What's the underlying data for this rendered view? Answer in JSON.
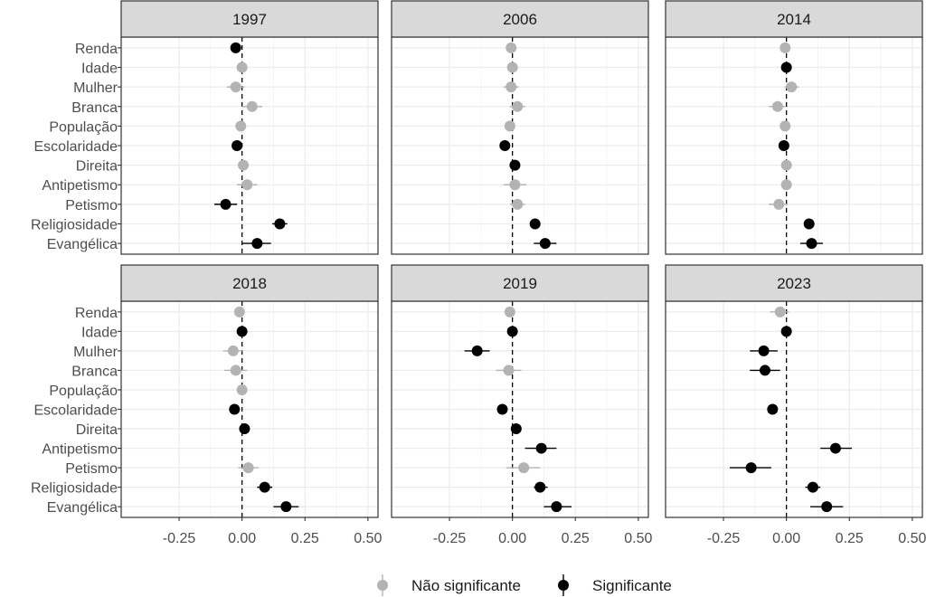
{
  "chart_data": {
    "type": "scatter",
    "subtype": "coefficient-plot-faceted",
    "title": "",
    "xlabel": "",
    "ylabel": "",
    "xlim": [
      -0.48,
      0.54
    ],
    "xticks": [
      -0.25,
      0.0,
      0.25,
      0.5
    ],
    "xtick_labels": [
      "-0.25",
      "0.00",
      "0.25",
      "0.50"
    ],
    "reference_line_x": 0,
    "grid": true,
    "legend_position": "bottom",
    "variables": [
      "Renda",
      "Idade",
      "Mulher",
      "Branca",
      "População",
      "Escolaridade",
      "Direita",
      "Antipetismo",
      "Petismo",
      "Religiosidade",
      "Evangélica"
    ],
    "legend": [
      {
        "key": "ns",
        "label": "Não significante",
        "color": "#b3b3b3"
      },
      {
        "key": "s",
        "label": "Significante",
        "color": "#000000"
      }
    ],
    "panels": [
      {
        "title": "1997",
        "points": [
          {
            "var": "Renda",
            "est": -0.025,
            "lo": -0.035,
            "hi": -0.015,
            "sig": true
          },
          {
            "var": "Idade",
            "est": 0.0,
            "lo": -0.01,
            "hi": 0.01,
            "sig": false
          },
          {
            "var": "Mulher",
            "est": -0.025,
            "lo": -0.06,
            "hi": 0.01,
            "sig": false
          },
          {
            "var": "Branca",
            "est": 0.04,
            "lo": 0.0,
            "hi": 0.08,
            "sig": false
          },
          {
            "var": "População",
            "est": -0.005,
            "lo": -0.015,
            "hi": 0.005,
            "sig": false
          },
          {
            "var": "Escolaridade",
            "est": -0.02,
            "lo": -0.03,
            "hi": -0.01,
            "sig": true
          },
          {
            "var": "Direita",
            "est": 0.005,
            "lo": -0.005,
            "hi": 0.015,
            "sig": false
          },
          {
            "var": "Antipetismo",
            "est": 0.02,
            "lo": -0.02,
            "hi": 0.06,
            "sig": false
          },
          {
            "var": "Petismo",
            "est": -0.065,
            "lo": -0.11,
            "hi": -0.02,
            "sig": true
          },
          {
            "var": "Religiosidade",
            "est": 0.15,
            "lo": 0.12,
            "hi": 0.18,
            "sig": true
          },
          {
            "var": "Evangélica",
            "est": 0.06,
            "lo": 0.0,
            "hi": 0.115,
            "sig": true
          }
        ]
      },
      {
        "title": "2006",
        "points": [
          {
            "var": "Renda",
            "est": -0.005,
            "lo": -0.015,
            "hi": 0.005,
            "sig": false
          },
          {
            "var": "Idade",
            "est": 0.0,
            "lo": -0.01,
            "hi": 0.01,
            "sig": false
          },
          {
            "var": "Mulher",
            "est": -0.005,
            "lo": -0.035,
            "hi": 0.025,
            "sig": false
          },
          {
            "var": "Branca",
            "est": 0.02,
            "lo": -0.01,
            "hi": 0.05,
            "sig": false
          },
          {
            "var": "População",
            "est": -0.01,
            "lo": -0.02,
            "hi": 0.0,
            "sig": false
          },
          {
            "var": "Escolaridade",
            "est": -0.03,
            "lo": -0.04,
            "hi": -0.02,
            "sig": true
          },
          {
            "var": "Direita",
            "est": 0.01,
            "lo": 0.0,
            "hi": 0.02,
            "sig": true
          },
          {
            "var": "Antipetismo",
            "est": 0.01,
            "lo": -0.035,
            "hi": 0.055,
            "sig": false
          },
          {
            "var": "Petismo",
            "est": 0.02,
            "lo": -0.01,
            "hi": 0.05,
            "sig": false
          },
          {
            "var": "Religiosidade",
            "est": 0.09,
            "lo": 0.07,
            "hi": 0.11,
            "sig": true
          },
          {
            "var": "Evangélica",
            "est": 0.13,
            "lo": 0.085,
            "hi": 0.175,
            "sig": true
          }
        ]
      },
      {
        "title": "2014",
        "points": [
          {
            "var": "Renda",
            "est": -0.005,
            "lo": -0.015,
            "hi": 0.005,
            "sig": false
          },
          {
            "var": "Idade",
            "est": 0.0,
            "lo": -0.01,
            "hi": 0.01,
            "sig": true
          },
          {
            "var": "Mulher",
            "est": 0.02,
            "lo": -0.005,
            "hi": 0.05,
            "sig": false
          },
          {
            "var": "Branca",
            "est": -0.035,
            "lo": -0.07,
            "hi": -0.005,
            "sig": false
          },
          {
            "var": "População",
            "est": -0.005,
            "lo": -0.015,
            "hi": 0.005,
            "sig": false
          },
          {
            "var": "Escolaridade",
            "est": -0.01,
            "lo": -0.02,
            "hi": 0.0,
            "sig": true
          },
          {
            "var": "Direita",
            "est": 0.0,
            "lo": -0.01,
            "hi": 0.01,
            "sig": false
          },
          {
            "var": "Antipetismo",
            "est": 0.0,
            "lo": -0.01,
            "hi": 0.01,
            "sig": false
          },
          {
            "var": "Petismo",
            "est": -0.03,
            "lo": -0.07,
            "hi": 0.005,
            "sig": false
          },
          {
            "var": "Religiosidade",
            "est": 0.09,
            "lo": 0.07,
            "hi": 0.11,
            "sig": true
          },
          {
            "var": "Evangélica",
            "est": 0.1,
            "lo": 0.055,
            "hi": 0.145,
            "sig": true
          }
        ]
      },
      {
        "title": "2018",
        "points": [
          {
            "var": "Renda",
            "est": -0.01,
            "lo": -0.02,
            "hi": 0.0,
            "sig": false
          },
          {
            "var": "Idade",
            "est": 0.0,
            "lo": -0.01,
            "hi": 0.01,
            "sig": true
          },
          {
            "var": "Mulher",
            "est": -0.035,
            "lo": -0.075,
            "hi": 0.005,
            "sig": false
          },
          {
            "var": "Branca",
            "est": -0.025,
            "lo": -0.07,
            "hi": 0.02,
            "sig": false
          },
          {
            "var": "População",
            "est": 0.0,
            "lo": -0.01,
            "hi": 0.01,
            "sig": false
          },
          {
            "var": "Escolaridade",
            "est": -0.03,
            "lo": -0.04,
            "hi": -0.02,
            "sig": true
          },
          {
            "var": "Direita",
            "est": 0.01,
            "lo": 0.0,
            "hi": 0.02,
            "sig": true
          },
          {
            "var": "Antipetismo",
            "est": null,
            "lo": null,
            "hi": null,
            "sig": null
          },
          {
            "var": "Petismo",
            "est": 0.025,
            "lo": -0.015,
            "hi": 0.065,
            "sig": false
          },
          {
            "var": "Religiosidade",
            "est": 0.09,
            "lo": 0.06,
            "hi": 0.12,
            "sig": true
          },
          {
            "var": "Evangélica",
            "est": 0.175,
            "lo": 0.125,
            "hi": 0.225,
            "sig": true
          }
        ]
      },
      {
        "title": "2019",
        "points": [
          {
            "var": "Renda",
            "est": -0.01,
            "lo": -0.02,
            "hi": 0.0,
            "sig": false
          },
          {
            "var": "Idade",
            "est": 0.0,
            "lo": -0.01,
            "hi": 0.01,
            "sig": true
          },
          {
            "var": "Mulher",
            "est": -0.14,
            "lo": -0.19,
            "hi": -0.09,
            "sig": true
          },
          {
            "var": "Branca",
            "est": -0.015,
            "lo": -0.065,
            "hi": 0.035,
            "sig": false
          },
          {
            "var": "População",
            "est": null,
            "lo": null,
            "hi": null,
            "sig": null
          },
          {
            "var": "Escolaridade",
            "est": -0.04,
            "lo": -0.05,
            "hi": -0.03,
            "sig": true
          },
          {
            "var": "Direita",
            "est": 0.015,
            "lo": 0.005,
            "hi": 0.025,
            "sig": true
          },
          {
            "var": "Antipetismo",
            "est": 0.115,
            "lo": 0.05,
            "hi": 0.175,
            "sig": true
          },
          {
            "var": "Petismo",
            "est": 0.045,
            "lo": -0.025,
            "hi": 0.11,
            "sig": false
          },
          {
            "var": "Religiosidade",
            "est": 0.11,
            "lo": 0.085,
            "hi": 0.14,
            "sig": true
          },
          {
            "var": "Evangélica",
            "est": 0.175,
            "lo": 0.125,
            "hi": 0.235,
            "sig": true
          }
        ]
      },
      {
        "title": "2023",
        "points": [
          {
            "var": "Renda",
            "est": -0.025,
            "lo": -0.065,
            "hi": 0.01,
            "sig": false
          },
          {
            "var": "Idade",
            "est": 0.0,
            "lo": -0.01,
            "hi": 0.01,
            "sig": true
          },
          {
            "var": "Mulher",
            "est": -0.09,
            "lo": -0.145,
            "hi": -0.035,
            "sig": true
          },
          {
            "var": "Branca",
            "est": -0.085,
            "lo": -0.145,
            "hi": -0.025,
            "sig": true
          },
          {
            "var": "População",
            "est": null,
            "lo": null,
            "hi": null,
            "sig": null
          },
          {
            "var": "Escolaridade",
            "est": -0.055,
            "lo": -0.075,
            "hi": -0.035,
            "sig": true
          },
          {
            "var": "Direita",
            "est": null,
            "lo": null,
            "hi": null,
            "sig": null
          },
          {
            "var": "Antipetismo",
            "est": 0.195,
            "lo": 0.135,
            "hi": 0.26,
            "sig": true
          },
          {
            "var": "Petismo",
            "est": -0.14,
            "lo": -0.225,
            "hi": -0.06,
            "sig": true
          },
          {
            "var": "Religiosidade",
            "est": 0.105,
            "lo": 0.075,
            "hi": 0.135,
            "sig": true
          },
          {
            "var": "Evangélica",
            "est": 0.16,
            "lo": 0.095,
            "hi": 0.225,
            "sig": true
          }
        ]
      }
    ]
  }
}
